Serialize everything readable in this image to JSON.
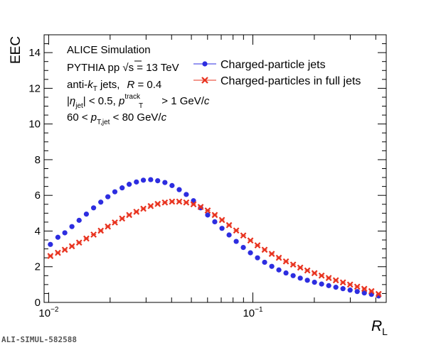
{
  "chart_data": {
    "type": "scatter",
    "xscale": "log",
    "xlim": [
      0.0095,
      0.45
    ],
    "ylim": [
      0,
      15
    ],
    "xlabel": "R",
    "xlabel_sub": "L",
    "ylabel": "EEC",
    "yticks": [
      "0",
      "2",
      "4",
      "6",
      "8",
      "10",
      "12",
      "14"
    ],
    "xticks": [
      {
        "base": "10",
        "exp": "−2",
        "value": 0.01
      },
      {
        "base": "10",
        "exp": "−1",
        "value": 0.1
      }
    ],
    "legend_position": "top-right",
    "annotations": {
      "line1": "ALICE Simulation",
      "line2a": "PYTHIA pp ",
      "line2_sqrt": "s",
      "line2b": " = 13 TeV",
      "line3a": "anti-",
      "line3_k": "k",
      "line3_ksub": "T",
      "line3b": " jets,",
      "line3_R": "R",
      "line3c": " = 0.4",
      "line4a": "|",
      "line4_eta": "η",
      "line4_etasub": "jet",
      "line4b": "| < 0.5, ",
      "line4_p": "p",
      "line4_psup": "track",
      "line4_psub": "T",
      "line4c": " > 1 GeV/",
      "line4_c": "c",
      "line5a": "60 < ",
      "line5_p": "p",
      "line5_psub": "T,jet",
      "line5b": " < 80 GeV/",
      "line5_c": "c"
    },
    "series": [
      {
        "name": "Charged-particle jets",
        "color": "#2d2de0",
        "marker": "circle",
        "x": [
          0.0102,
          0.0111,
          0.012,
          0.013,
          0.0141,
          0.0153,
          0.0166,
          0.018,
          0.0195,
          0.0211,
          0.0229,
          0.0248,
          0.0269,
          0.0291,
          0.0316,
          0.0342,
          0.0371,
          0.0402,
          0.0436,
          0.0472,
          0.0512,
          0.0555,
          0.0601,
          0.0651,
          0.0706,
          0.0765,
          0.0829,
          0.0898,
          0.0973,
          0.1054,
          0.1142,
          0.1238,
          0.1341,
          0.1453,
          0.1575,
          0.1707,
          0.1849,
          0.2004,
          0.2171,
          0.2353,
          0.255,
          0.2763,
          0.2994,
          0.3244,
          0.3515,
          0.3809,
          0.4128
        ],
        "y": [
          3.25,
          3.65,
          3.9,
          4.25,
          4.6,
          4.95,
          5.3,
          5.62,
          5.92,
          6.2,
          6.42,
          6.62,
          6.75,
          6.85,
          6.88,
          6.82,
          6.72,
          6.55,
          6.32,
          6.05,
          5.7,
          5.3,
          4.9,
          4.52,
          4.15,
          3.78,
          3.42,
          3.08,
          2.78,
          2.5,
          2.25,
          2.02,
          1.82,
          1.65,
          1.5,
          1.36,
          1.24,
          1.13,
          1.03,
          0.94,
          0.85,
          0.77,
          0.69,
          0.61,
          0.53,
          0.45,
          0.36
        ]
      },
      {
        "name": "Charged-particles in full jets",
        "color": "#e8321e",
        "marker": "x",
        "x": [
          0.0102,
          0.0111,
          0.012,
          0.013,
          0.0141,
          0.0153,
          0.0166,
          0.018,
          0.0195,
          0.0211,
          0.0229,
          0.0248,
          0.0269,
          0.0291,
          0.0316,
          0.0342,
          0.0371,
          0.0402,
          0.0436,
          0.0472,
          0.0512,
          0.0555,
          0.0601,
          0.0651,
          0.0706,
          0.0765,
          0.0829,
          0.0898,
          0.0973,
          0.1054,
          0.1142,
          0.1238,
          0.1341,
          0.1453,
          0.1575,
          0.1707,
          0.1849,
          0.2004,
          0.2171,
          0.2353,
          0.255,
          0.2763,
          0.2994,
          0.3244,
          0.3515,
          0.3809,
          0.4128
        ],
        "y": [
          2.6,
          2.78,
          2.95,
          3.15,
          3.35,
          3.58,
          3.8,
          4.02,
          4.25,
          4.48,
          4.7,
          4.9,
          5.08,
          5.25,
          5.4,
          5.52,
          5.6,
          5.65,
          5.65,
          5.6,
          5.5,
          5.35,
          5.15,
          4.9,
          4.62,
          4.33,
          4.03,
          3.75,
          3.47,
          3.2,
          2.95,
          2.72,
          2.5,
          2.3,
          2.12,
          1.95,
          1.79,
          1.64,
          1.5,
          1.37,
          1.24,
          1.12,
          1.0,
          0.88,
          0.76,
          0.63,
          0.47
        ]
      }
    ]
  },
  "footer": {
    "stamp": "ALI-SIMUL-582588"
  }
}
